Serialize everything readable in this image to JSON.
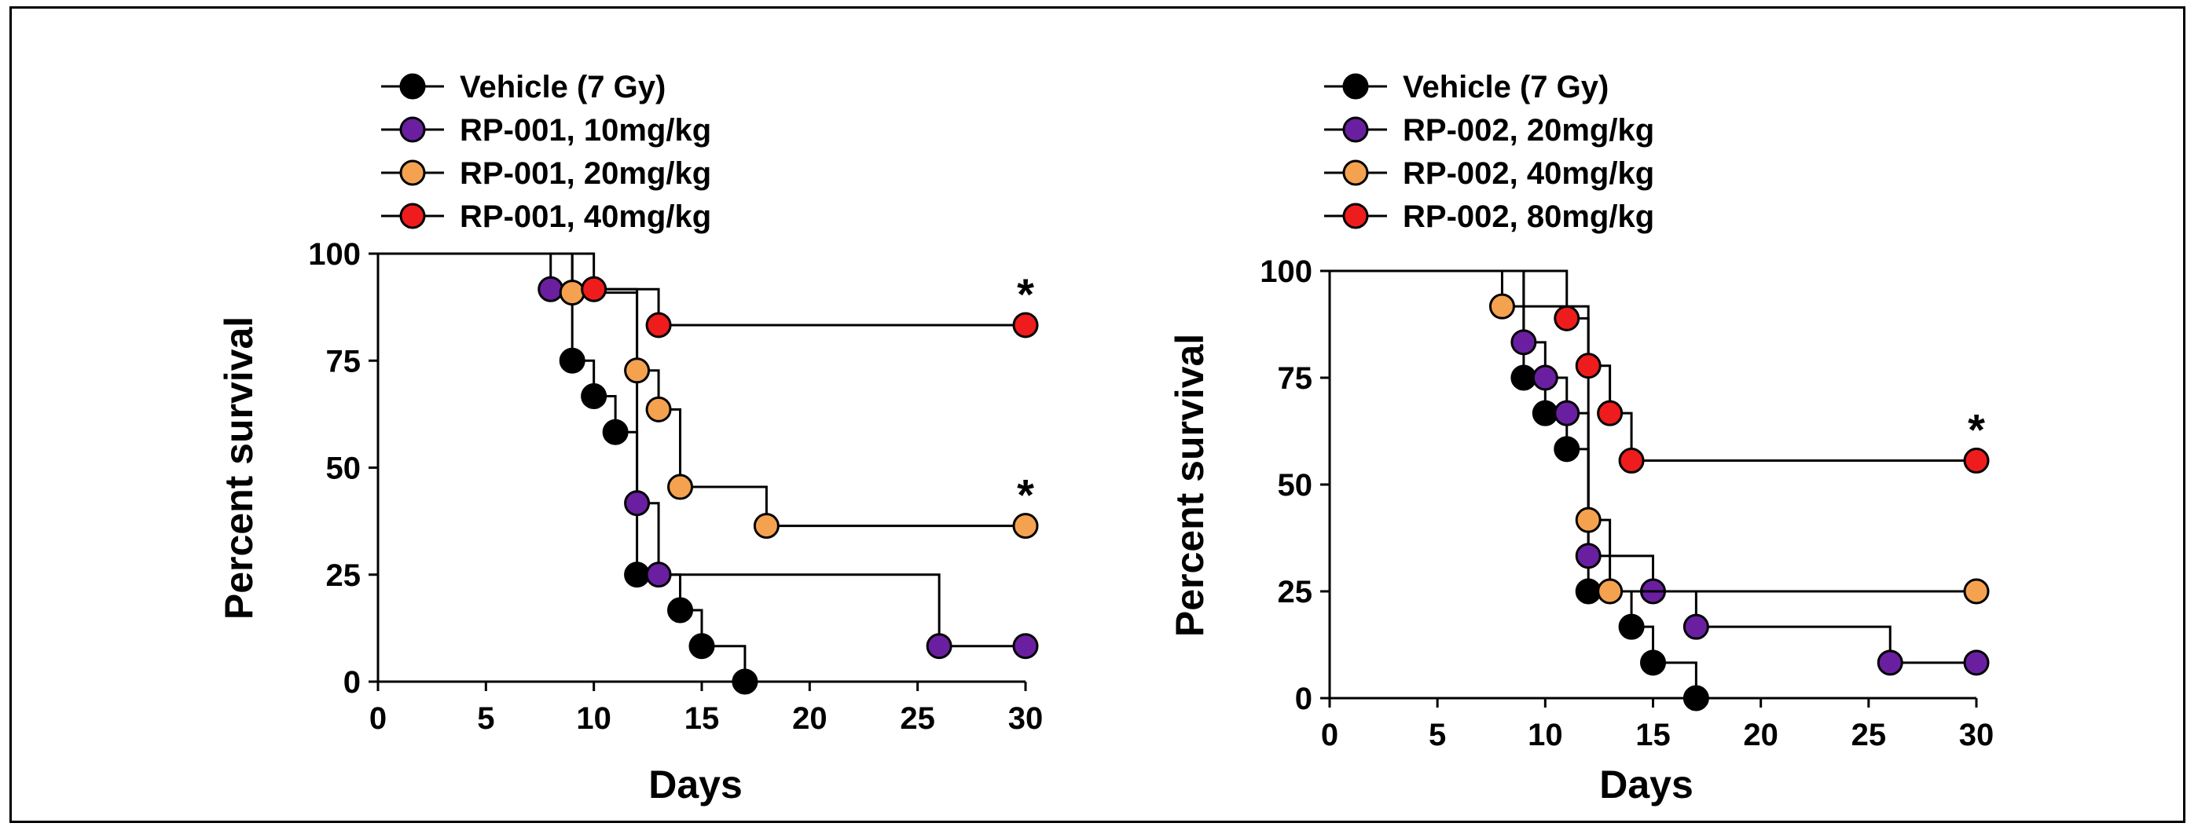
{
  "figure": {
    "panels": [
      {
        "legend": [
          {
            "label": "Vehicle (7 Gy)",
            "color": "#000000"
          },
          {
            "label": "RP-001, 10mg/kg",
            "color": "#6a1fa0"
          },
          {
            "label": "RP-001, 20mg/kg",
            "color": "#f4a24f"
          },
          {
            "label": "RP-001, 40mg/kg",
            "color": "#ee1c1c"
          }
        ],
        "xlabel": "Days",
        "ylabel": "Percent survival"
      },
      {
        "legend": [
          {
            "label": "Vehicle (7 Gy)",
            "color": "#000000"
          },
          {
            "label": "RP-002, 20mg/kg",
            "color": "#6a1fa0"
          },
          {
            "label": "RP-002, 40mg/kg",
            "color": "#f4a24f"
          },
          {
            "label": "RP-002, 80mg/kg",
            "color": "#ee1c1c"
          }
        ],
        "xlabel": "Days",
        "ylabel": "Percent survival"
      }
    ]
  },
  "chart_data": [
    {
      "type": "line",
      "subtype": "kaplan-meier-step",
      "xlabel": "Days",
      "ylabel": "Percent survival",
      "xlim": [
        0,
        30
      ],
      "ylim": [
        0,
        100
      ],
      "xticks": [
        0,
        5,
        10,
        15,
        20,
        25,
        30
      ],
      "yticks": [
        0,
        25,
        50,
        75,
        100
      ],
      "grid": false,
      "legend_position": "top-left",
      "series": [
        {
          "name": "Vehicle (7 Gy)",
          "color": "#000000",
          "points": [
            [
              9,
              75
            ],
            [
              10,
              66.7
            ],
            [
              11,
              58.3
            ],
            [
              12,
              25
            ],
            [
              14,
              16.7
            ],
            [
              15,
              8.3
            ],
            [
              17,
              0
            ]
          ]
        },
        {
          "name": "RP-001, 10mg/kg",
          "color": "#6a1fa0",
          "points": [
            [
              8,
              91.7
            ],
            [
              12,
              41.7
            ],
            [
              13,
              25
            ],
            [
              26,
              8.3
            ],
            [
              30,
              8.3
            ]
          ]
        },
        {
          "name": "RP-001, 20mg/kg",
          "color": "#f4a24f",
          "points": [
            [
              9,
              90.9
            ],
            [
              12,
              72.7
            ],
            [
              13,
              63.6
            ],
            [
              14,
              45.5
            ],
            [
              18,
              36.4
            ],
            [
              30,
              36.4
            ]
          ]
        },
        {
          "name": "RP-001, 40mg/kg",
          "color": "#ee1c1c",
          "points": [
            [
              10,
              91.7
            ],
            [
              13,
              83.3
            ],
            [
              30,
              83.3
            ]
          ]
        }
      ],
      "significance": [
        {
          "series": "RP-001, 40mg/kg",
          "x": 30,
          "y": 83.3,
          "label": "*"
        },
        {
          "series": "RP-001, 20mg/kg",
          "x": 30,
          "y": 36.4,
          "label": "*"
        }
      ]
    },
    {
      "type": "line",
      "subtype": "kaplan-meier-step",
      "xlabel": "Days",
      "ylabel": "Percent survival",
      "xlim": [
        0,
        30
      ],
      "ylim": [
        0,
        100
      ],
      "xticks": [
        0,
        5,
        10,
        15,
        20,
        25,
        30
      ],
      "yticks": [
        0,
        25,
        50,
        75,
        100
      ],
      "grid": false,
      "legend_position": "top-left",
      "series": [
        {
          "name": "Vehicle (7 Gy)",
          "color": "#000000",
          "points": [
            [
              9,
              75
            ],
            [
              10,
              66.7
            ],
            [
              11,
              58.3
            ],
            [
              12,
              25
            ],
            [
              14,
              16.7
            ],
            [
              15,
              8.3
            ],
            [
              17,
              0
            ]
          ]
        },
        {
          "name": "RP-002, 20mg/kg",
          "color": "#6a1fa0",
          "points": [
            [
              9,
              83.3
            ],
            [
              10,
              75
            ],
            [
              11,
              66.7
            ],
            [
              12,
              33.3
            ],
            [
              15,
              25
            ],
            [
              17,
              16.7
            ],
            [
              26,
              8.3
            ],
            [
              30,
              8.3
            ]
          ]
        },
        {
          "name": "RP-002, 40mg/kg",
          "color": "#f4a24f",
          "points": [
            [
              8,
              91.7
            ],
            [
              12,
              41.7
            ],
            [
              13,
              25
            ],
            [
              30,
              25
            ]
          ]
        },
        {
          "name": "RP-002, 80mg/kg",
          "color": "#ee1c1c",
          "points": [
            [
              11,
              88.9
            ],
            [
              12,
              77.8
            ],
            [
              13,
              66.7
            ],
            [
              14,
              55.6
            ],
            [
              30,
              55.6
            ]
          ]
        }
      ],
      "significance": [
        {
          "series": "RP-002, 80mg/kg",
          "x": 30,
          "y": 55.6,
          "label": "*"
        }
      ]
    }
  ]
}
